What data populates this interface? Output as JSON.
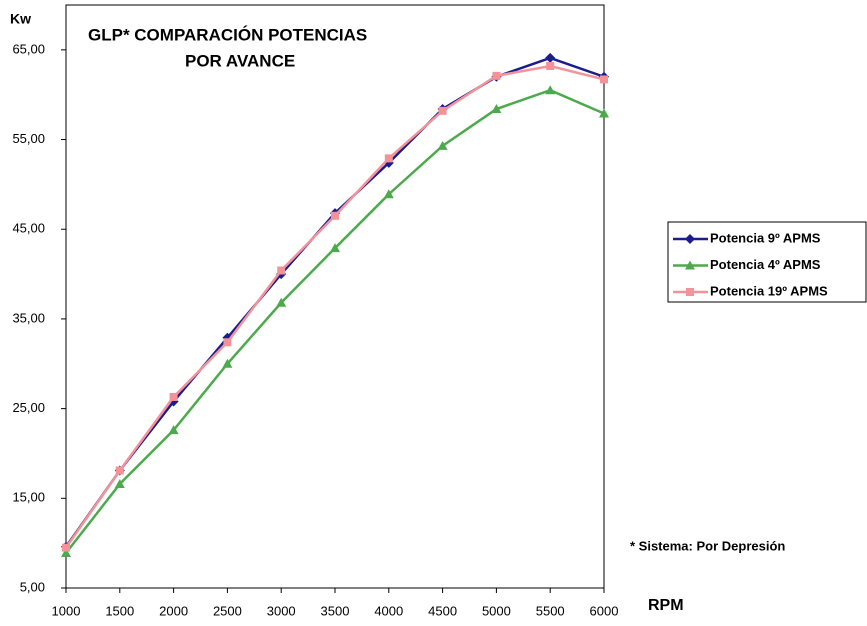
{
  "chart_data": {
    "type": "line",
    "title": [
      "GLP*  COMPARACIÓN POTENCIAS",
      "POR AVANCE"
    ],
    "y_label": "Kw",
    "x_label": "RPM",
    "annotation": "* Sistema: Por Depresión",
    "x": [
      1000,
      1500,
      2000,
      2500,
      3000,
      3500,
      4000,
      4500,
      5000,
      5500,
      6000
    ],
    "xlim": [
      1000,
      6000
    ],
    "xticks": [
      1000,
      1500,
      2000,
      2500,
      3000,
      3500,
      4000,
      4500,
      5000,
      5500,
      6000
    ],
    "ylim": [
      5,
      70
    ],
    "yticks": [
      {
        "value": 5,
        "label": "5,00"
      },
      {
        "value": 15,
        "label": "15,00"
      },
      {
        "value": 25,
        "label": "25,00"
      },
      {
        "value": 35,
        "label": "35,00"
      },
      {
        "value": 45,
        "label": "45,00"
      },
      {
        "value": 55,
        "label": "55,00"
      },
      {
        "value": 65,
        "label": "65,00"
      }
    ],
    "grid": false,
    "legend": "right",
    "series": [
      {
        "name": "Potencia 9º APMS",
        "color": "#1c1c8c",
        "marker": "diamond",
        "values": [
          9.6,
          18.1,
          25.8,
          32.9,
          40.0,
          46.8,
          52.4,
          58.4,
          62.0,
          64.1,
          62.0
        ]
      },
      {
        "name": "Potencia 4º APMS",
        "color": "#4caa4c",
        "marker": "triangle",
        "values": [
          8.9,
          16.6,
          22.6,
          30.0,
          36.8,
          42.9,
          48.9,
          54.3,
          58.4,
          60.5,
          57.9
        ]
      },
      {
        "name": "Potencia 19º APMS",
        "color": "#f4929a",
        "marker": "square",
        "values": [
          9.5,
          18.1,
          26.3,
          32.4,
          40.4,
          46.5,
          52.9,
          58.2,
          62.1,
          63.2,
          61.7
        ]
      }
    ]
  }
}
